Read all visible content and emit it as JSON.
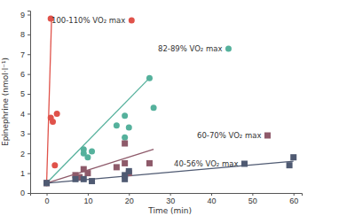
{
  "chart_data": {
    "type": "scatter",
    "x_label": "Time (min)",
    "y_label": "Epinephrine (nmol·l⁻¹)",
    "xlim": [
      -4,
      62
    ],
    "xticks": [
      0,
      10,
      20,
      30,
      40,
      50,
      60
    ],
    "ylim": [
      0,
      9.2
    ],
    "yticks": [
      0,
      1,
      2,
      3,
      4,
      5,
      6,
      7,
      8,
      9
    ],
    "grid": false,
    "series": [
      {
        "name": "100-110% VO₂ max",
        "color": "#e0524a",
        "marker": "circle",
        "x": [
          0,
          1,
          1,
          1.5,
          2.5,
          2
        ],
        "values": [
          0.5,
          8.8,
          3.8,
          3.6,
          4.0,
          1.4
        ],
        "fit_x": [
          0,
          1.2
        ],
        "fit_y": [
          0.5,
          8.8
        ]
      },
      {
        "name": "82-89% VO₂ max",
        "color": "#55b19c",
        "marker": "circle",
        "x": [
          0,
          9,
          9,
          10,
          11,
          17,
          19,
          19,
          20,
          25,
          26
        ],
        "values": [
          0.5,
          2.0,
          2.2,
          1.8,
          2.1,
          3.4,
          3.9,
          2.8,
          3.3,
          5.8,
          4.3
        ],
        "fit_x": [
          0,
          25
        ],
        "fit_y": [
          0.5,
          5.8
        ]
      },
      {
        "name": "60-70% VO₂ max",
        "color": "#8e5a6a",
        "marker": "square",
        "x": [
          0,
          7,
          8,
          9,
          10,
          17,
          19,
          19,
          20,
          25
        ],
        "values": [
          0.5,
          0.9,
          0.8,
          1.2,
          1.0,
          1.3,
          1.5,
          2.5,
          1.0,
          1.5
        ],
        "fit_x": [
          0,
          26
        ],
        "fit_y": [
          0.5,
          2.2
        ]
      },
      {
        "name": "40-56% VO₂ max",
        "color": "#4f5a72",
        "marker": "square",
        "x": [
          0,
          7,
          9,
          11,
          19,
          19,
          20,
          59,
          60
        ],
        "values": [
          0.5,
          0.7,
          0.7,
          0.6,
          0.7,
          0.9,
          1.1,
          1.4,
          1.8
        ],
        "fit_x": [
          0,
          60
        ],
        "fit_y": [
          0.5,
          1.6
        ]
      }
    ]
  }
}
